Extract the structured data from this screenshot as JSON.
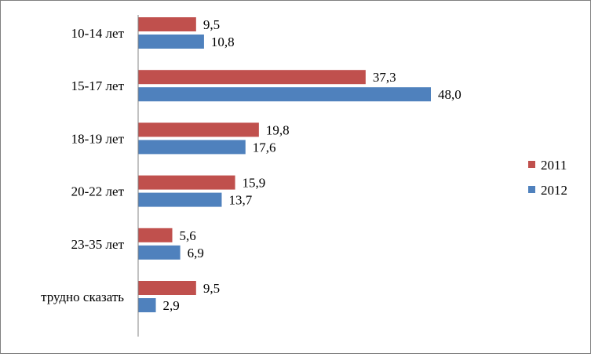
{
  "chart_data": {
    "type": "bar",
    "orientation": "horizontal",
    "title": "",
    "xlabel": "",
    "ylabel": "",
    "categories": [
      "10-14 лет",
      "15-17 лет",
      "18-19 лет",
      "20-22 лет",
      "23-35 лет",
      "трудно сказать"
    ],
    "series": [
      {
        "name": "2011",
        "color": "#c0504d",
        "values": [
          9.5,
          37.3,
          19.8,
          15.9,
          5.6,
          9.5
        ],
        "labels": [
          "9,5",
          "37,3",
          "19,8",
          "15,9",
          "5,6",
          "9,5"
        ]
      },
      {
        "name": "2012",
        "color": "#4f81bd",
        "values": [
          10.8,
          48.0,
          17.6,
          13.7,
          6.9,
          2.9
        ],
        "labels": [
          "10,8",
          "48,0",
          "17,6",
          "13,7",
          "6,9",
          "2,9"
        ]
      }
    ],
    "xlim": [
      0,
      55
    ],
    "grid": false,
    "legend_position": "right"
  }
}
